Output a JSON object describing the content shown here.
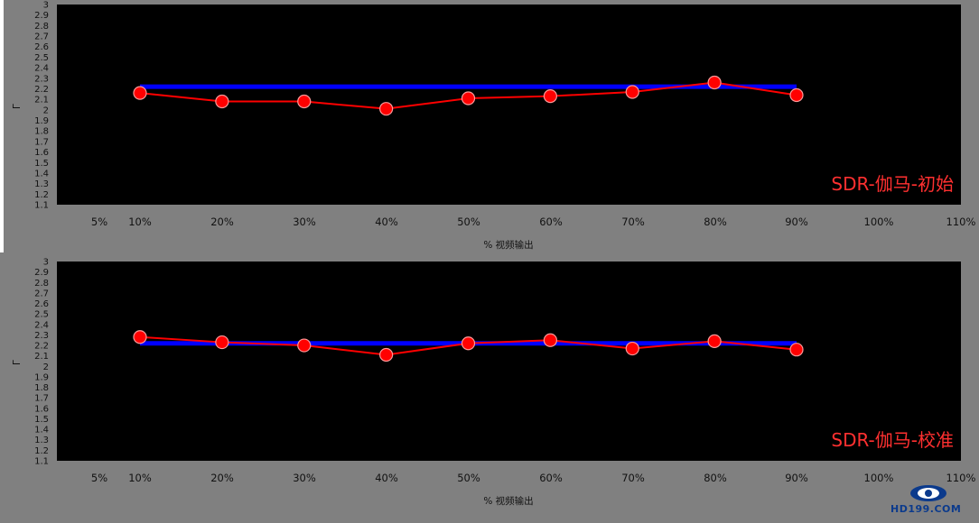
{
  "chart_data": [
    {
      "type": "line",
      "panel_label": "SDR-伽马-初始",
      "xlabel": "% 视频输出",
      "ylabel": "Γ",
      "x_ticks": [
        "5%",
        "10%",
        "20%",
        "30%",
        "40%",
        "50%",
        "60%",
        "70%",
        "80%",
        "90%",
        "100%",
        "110%"
      ],
      "y_ticks": [
        "1.1",
        "1.2",
        "1.3",
        "1.4",
        "1.5",
        "1.6",
        "1.7",
        "1.8",
        "1.9",
        "2",
        "2.1",
        "2.2",
        "2.3",
        "2.4",
        "2.5",
        "2.6",
        "2.7",
        "2.8",
        "2.9",
        "3"
      ],
      "ylim": [
        1.1,
        3.0
      ],
      "series": [
        {
          "color": "#0000ff",
          "x": [
            10,
            90
          ],
          "values": [
            2.22,
            2.22
          ]
        },
        {
          "color": "#ff0000",
          "x": [
            10,
            20,
            30,
            40,
            50,
            60,
            70,
            80,
            90
          ],
          "values": [
            2.16,
            2.08,
            2.08,
            2.01,
            2.11,
            2.13,
            2.17,
            2.26,
            2.14
          ]
        }
      ]
    },
    {
      "type": "line",
      "panel_label": "SDR-伽马-校准",
      "xlabel": "% 视频输出",
      "ylabel": "Γ",
      "x_ticks": [
        "5%",
        "10%",
        "20%",
        "30%",
        "40%",
        "50%",
        "60%",
        "70%",
        "80%",
        "90%",
        "100%",
        "110%"
      ],
      "y_ticks": [
        "1.1",
        "1.2",
        "1.3",
        "1.4",
        "1.5",
        "1.6",
        "1.7",
        "1.8",
        "1.9",
        "2",
        "2.1",
        "2.2",
        "2.3",
        "2.4",
        "2.5",
        "2.6",
        "2.7",
        "2.8",
        "2.9",
        "3"
      ],
      "ylim": [
        1.1,
        3.0
      ],
      "series": [
        {
          "color": "#0000ff",
          "x": [
            10,
            90
          ],
          "values": [
            2.22,
            2.22
          ]
        },
        {
          "color": "#ff0000",
          "x": [
            10,
            20,
            30,
            40,
            50,
            60,
            70,
            80,
            90
          ],
          "values": [
            2.28,
            2.23,
            2.2,
            2.11,
            2.22,
            2.25,
            2.17,
            2.24,
            2.16
          ]
        }
      ]
    }
  ],
  "logo": {
    "text": "HD199.COM"
  }
}
